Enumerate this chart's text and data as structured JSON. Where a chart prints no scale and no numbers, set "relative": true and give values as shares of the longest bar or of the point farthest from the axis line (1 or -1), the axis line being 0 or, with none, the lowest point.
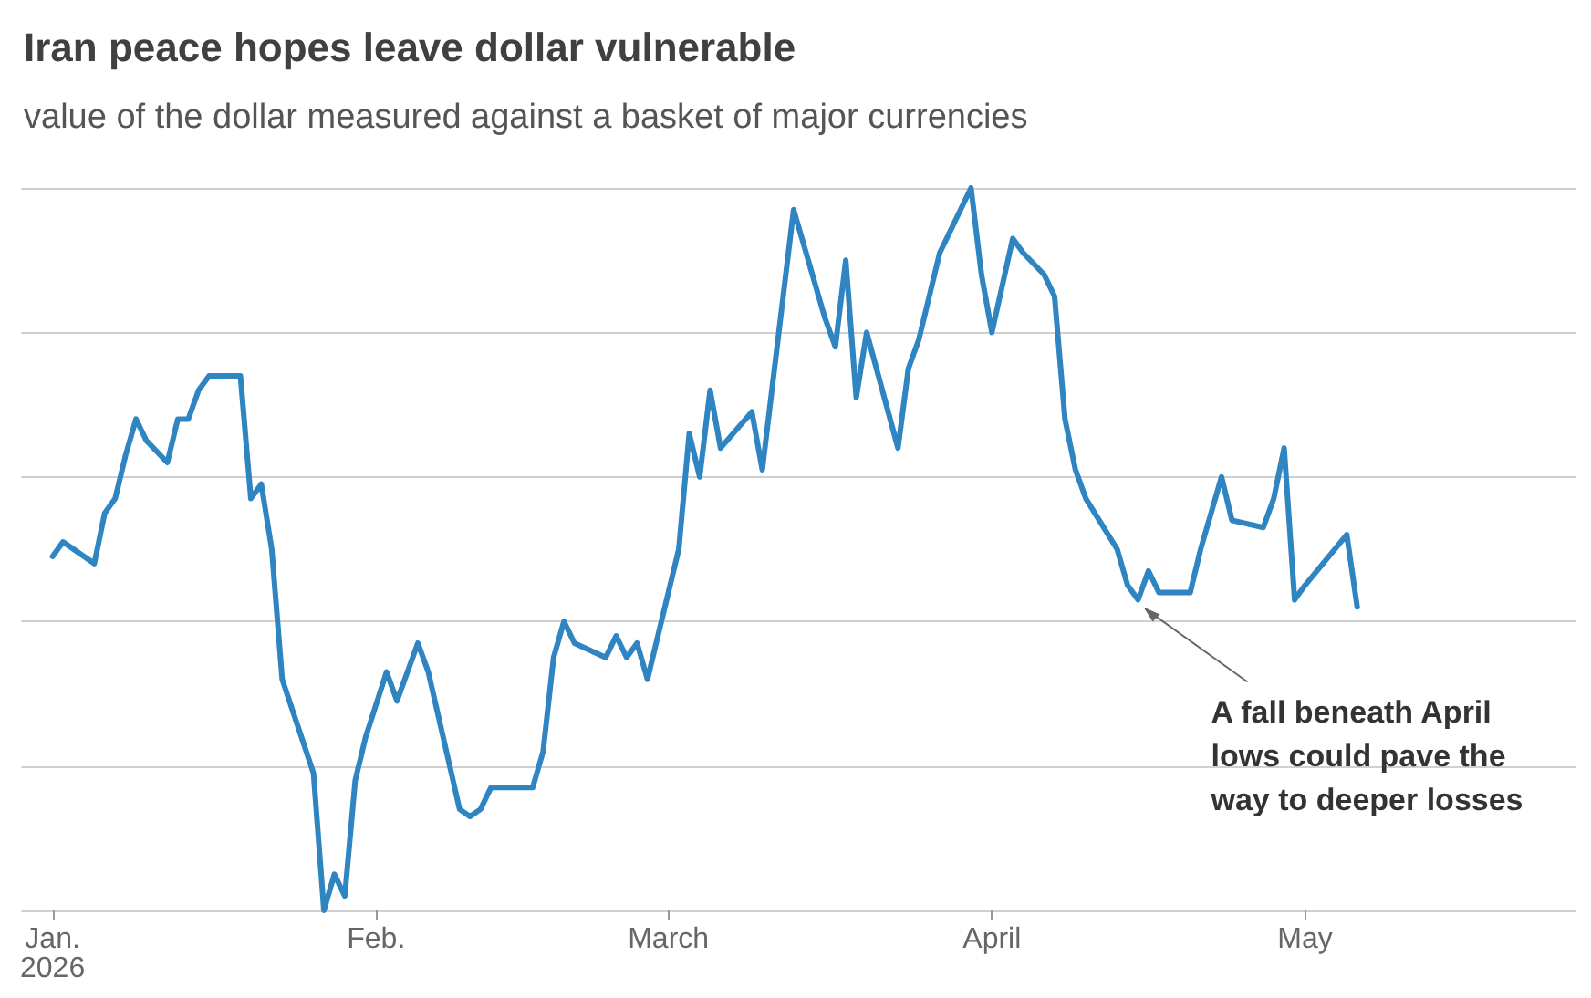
{
  "chart_data": {
    "type": "line",
    "title": "Iran peace hopes leave dollar vulnerable",
    "subtitle": "value of the dollar measured against a basket of major currencies",
    "relative": true,
    "grid": "y",
    "marker": "none",
    "line_style": "solid",
    "xlim": [
      "2025-12-29",
      "2026-05-27"
    ],
    "xticks": [
      {
        "value": "2026-01-01",
        "label": "Jan.\n2026"
      },
      {
        "value": "2026-02-01",
        "label": "Feb."
      },
      {
        "value": "2026-03-01",
        "label": "March"
      },
      {
        "value": "2026-04-01",
        "label": "April"
      },
      {
        "value": "2026-05-01",
        "label": "May"
      }
    ],
    "x": [
      "2026-01-01",
      "2026-01-02",
      "2026-01-05",
      "2026-01-06",
      "2026-01-07",
      "2026-01-08",
      "2026-01-09",
      "2026-01-10",
      "2026-01-12",
      "2026-01-13",
      "2026-01-14",
      "2026-01-15",
      "2026-01-16",
      "2026-01-19",
      "2026-01-20",
      "2026-01-21",
      "2026-01-22",
      "2026-01-23",
      "2026-01-26",
      "2026-01-27",
      "2026-01-28",
      "2026-01-29",
      "2026-01-30",
      "2026-01-31",
      "2026-02-02",
      "2026-02-03",
      "2026-02-05",
      "2026-02-06",
      "2026-02-09",
      "2026-02-10",
      "2026-02-11",
      "2026-02-12",
      "2026-02-16",
      "2026-02-17",
      "2026-02-18",
      "2026-02-19",
      "2026-02-20",
      "2026-02-23",
      "2026-02-24",
      "2026-02-25",
      "2026-02-26",
      "2026-02-27",
      "2026-03-02",
      "2026-03-03",
      "2026-03-04",
      "2026-03-05",
      "2026-03-06",
      "2026-03-09",
      "2026-03-10",
      "2026-03-13",
      "2026-03-16",
      "2026-03-17",
      "2026-03-18",
      "2026-03-19",
      "2026-03-20",
      "2026-03-23",
      "2026-03-24",
      "2026-03-25",
      "2026-03-27",
      "2026-03-30",
      "2026-03-31",
      "2026-04-01",
      "2026-04-03",
      "2026-04-04",
      "2026-04-06",
      "2026-04-07",
      "2026-04-08",
      "2026-04-09",
      "2026-04-10",
      "2026-04-13",
      "2026-04-14",
      "2026-04-15",
      "2026-04-16",
      "2026-04-17",
      "2026-04-20",
      "2026-04-21",
      "2026-04-23",
      "2026-04-24",
      "2026-04-27",
      "2026-04-28",
      "2026-04-29",
      "2026-04-30",
      "2026-05-01",
      "2026-05-05",
      "2026-05-06"
    ],
    "series": [
      {
        "color": "#2f84c2",
        "values": [
          0.49,
          0.51,
          0.48,
          0.55,
          0.57,
          0.63,
          0.68,
          0.65,
          0.62,
          0.68,
          0.68,
          0.72,
          0.74,
          0.74,
          0.57,
          0.59,
          0.5,
          0.32,
          0.19,
          0,
          0.05,
          0.02,
          0.18,
          0.24,
          0.33,
          0.29,
          0.37,
          0.33,
          0.14,
          0.13,
          0.14,
          0.17,
          0.17,
          0.22,
          0.35,
          0.4,
          0.37,
          0.35,
          0.38,
          0.35,
          0.37,
          0.32,
          0.5,
          0.66,
          0.6,
          0.72,
          0.64,
          0.69,
          0.61,
          0.97,
          0.82,
          0.78,
          0.9,
          0.71,
          0.8,
          0.64,
          0.75,
          0.79,
          0.91,
          1,
          0.88,
          0.8,
          0.93,
          0.91,
          0.88,
          0.85,
          0.68,
          0.61,
          0.57,
          0.5,
          0.45,
          0.43,
          0.47,
          0.44,
          0.44,
          0.5,
          0.6,
          0.54,
          0.53,
          0.57,
          0.64,
          0.43,
          0.45,
          0.52,
          0.42
        ]
      }
    ],
    "annotations": [
      {
        "text": "A fall beneath April lows could pave the way to deeper losses",
        "x": "2026-04-15",
        "y": 0.43
      }
    ]
  }
}
